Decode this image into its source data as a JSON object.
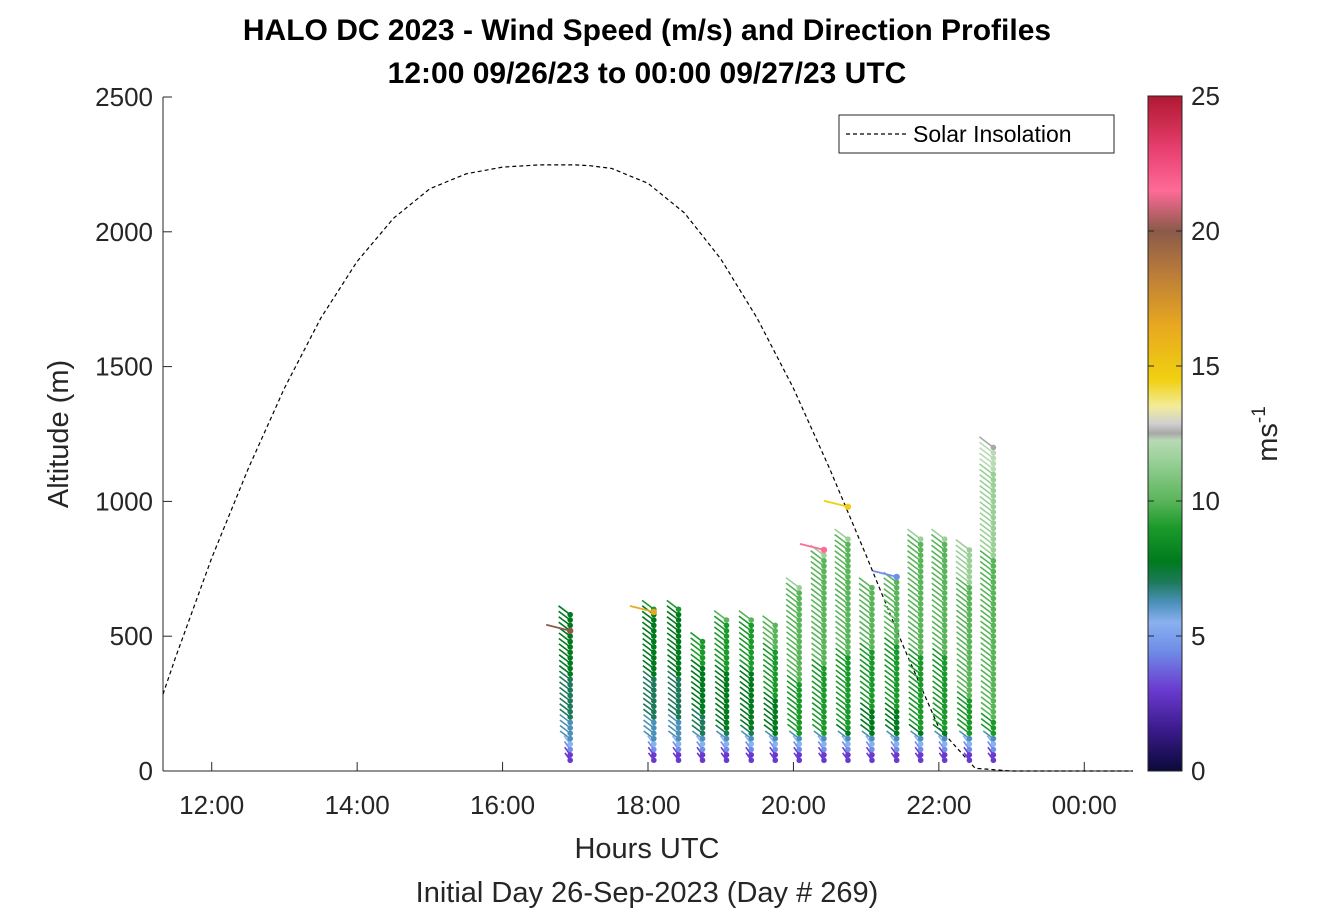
{
  "chart_data": {
    "type": "scatter",
    "title": "HALO DC 2023 - Wind Speed (m/s) and Direction Profiles",
    "subtitle": "12:00 09/26/23 to 00:00 09/27/23  UTC",
    "xlabel": "Hours UTC",
    "xlabel2": "Initial Day 26-Sep-2023 (Day # 269)",
    "ylabel": "Altitude (m)",
    "xlim": [
      11.33,
      24.67
    ],
    "ylim": [
      0,
      2500
    ],
    "x_ticks": [
      12,
      14,
      16,
      18,
      20,
      22,
      24
    ],
    "x_tick_labels": [
      "12:00",
      "14:00",
      "16:00",
      "18:00",
      "20:00",
      "22:00",
      "00:00"
    ],
    "y_ticks": [
      0,
      500,
      1000,
      1500,
      2000,
      2500
    ],
    "y_tick_labels": [
      "0",
      "500",
      "1000",
      "1500",
      "2000",
      "2500"
    ],
    "grid": false,
    "legend": {
      "entries": [
        "Solar Insolation"
      ],
      "placement": "top-right"
    },
    "colorbar": {
      "label": "ms",
      "label_exponent": "-1",
      "range": [
        0,
        25
      ],
      "ticks": [
        0,
        5,
        10,
        15,
        20,
        25
      ],
      "tick_labels": [
        "0",
        "5",
        "10",
        "15",
        "20",
        "25"
      ]
    },
    "solar_insolation": {
      "style": "dashed",
      "x": [
        11.33,
        11.5,
        12,
        12.5,
        13,
        13.5,
        14,
        14.5,
        15,
        15.5,
        16,
        16.5,
        17,
        17.2,
        17.5,
        18,
        18.5,
        19,
        19.5,
        20,
        20.5,
        21,
        21.5,
        22,
        22.5,
        23,
        23.25,
        23.4,
        23.6,
        24,
        24.5,
        24.67
      ],
      "y": [
        285,
        420,
        790,
        1120,
        1420,
        1680,
        1890,
        2050,
        2160,
        2215,
        2240,
        2248,
        2248,
        2245,
        2235,
        2180,
        2070,
        1900,
        1680,
        1420,
        1120,
        800,
        470,
        160,
        10,
        0,
        0,
        0,
        0,
        0,
        0,
        0
      ]
    },
    "wind_profiles": [
      {
        "time": 16.93,
        "max_alt": 590,
        "mean_speed": 7.5
      },
      {
        "time": 18.08,
        "max_alt": 600,
        "mean_speed": 7.5
      },
      {
        "time": 18.42,
        "max_alt": 600,
        "mean_speed": 7.5
      },
      {
        "time": 18.75,
        "max_alt": 480,
        "mean_speed": 8.0
      },
      {
        "time": 19.08,
        "max_alt": 560,
        "mean_speed": 8.5
      },
      {
        "time": 19.42,
        "max_alt": 560,
        "mean_speed": 8.5
      },
      {
        "time": 19.75,
        "max_alt": 540,
        "mean_speed": 9.0
      },
      {
        "time": 20.08,
        "max_alt": 680,
        "mean_speed": 10.0
      },
      {
        "time": 20.42,
        "max_alt": 800,
        "mean_speed": 10.0
      },
      {
        "time": 20.75,
        "max_alt": 860,
        "mean_speed": 10.0
      },
      {
        "time": 21.08,
        "max_alt": 680,
        "mean_speed": 9.5
      },
      {
        "time": 21.42,
        "max_alt": 700,
        "mean_speed": 9.5
      },
      {
        "time": 21.75,
        "max_alt": 860,
        "mean_speed": 10.0
      },
      {
        "time": 22.08,
        "max_alt": 860,
        "mean_speed": 10.0
      },
      {
        "time": 22.42,
        "max_alt": 820,
        "mean_speed": 10.5
      },
      {
        "time": 22.75,
        "max_alt": 1200,
        "mean_speed": 11.0
      }
    ],
    "outlier_barbs": [
      {
        "time": 16.93,
        "alt": 520,
        "speed": 20.5
      },
      {
        "time": 18.08,
        "alt": 590,
        "speed": 18.0
      },
      {
        "time": 20.42,
        "alt": 820,
        "speed": 22.5
      },
      {
        "time": 20.75,
        "alt": 980,
        "speed": 15.0
      },
      {
        "time": 21.42,
        "alt": 720,
        "speed": 5.0
      }
    ]
  }
}
